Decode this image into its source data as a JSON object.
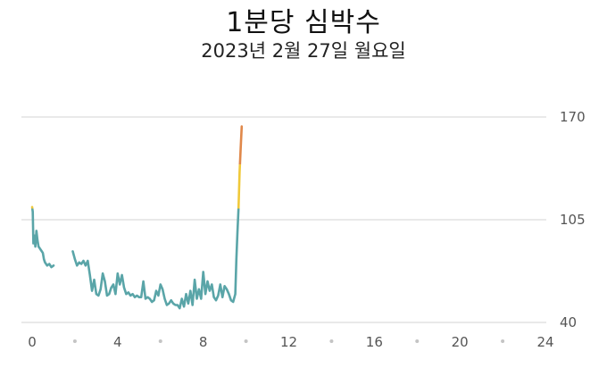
{
  "header": {
    "title": "1분당 심박수",
    "subtitle": "2023년 2월 27일 월요일"
  },
  "colors": {
    "normal": "#5aa5a8",
    "elevated": "#f0c93a",
    "high": "#e0884a",
    "grid": "#dcdcdc",
    "text": "#555555"
  },
  "chart_data": {
    "type": "line",
    "title": "1분당 심박수",
    "subtitle": "2023년 2월 27일 월요일",
    "xlabel": "",
    "ylabel": "",
    "xlim": [
      0,
      24
    ],
    "ylim": [
      40,
      170
    ],
    "x_ticks": [
      0,
      4,
      8,
      12,
      16,
      20,
      24
    ],
    "x_minor_ticks": [
      2,
      6,
      10,
      14,
      18,
      22
    ],
    "y_ticks": [
      40,
      105,
      170
    ],
    "y_axis_position": "right",
    "grid": true,
    "zones": [
      {
        "from": 40,
        "to": 112,
        "color_key": "normal"
      },
      {
        "from": 112,
        "to": 140,
        "color_key": "elevated"
      },
      {
        "from": 140,
        "to": 170,
        "color_key": "high"
      }
    ],
    "segments": [
      {
        "x": [
          0.0,
          0.03,
          0.06,
          0.1,
          0.15,
          0.2,
          0.25,
          0.3,
          0.35,
          0.4,
          0.45,
          0.5,
          0.55,
          0.6,
          0.65,
          0.7,
          0.8,
          0.9,
          1.0
        ],
        "y": [
          113,
          110,
          90,
          95,
          88,
          98,
          92,
          88,
          87,
          86,
          85,
          84,
          80,
          78,
          77,
          76,
          77,
          75,
          76
        ]
      },
      {
        "x": [
          1.9,
          2.0,
          2.1,
          2.2,
          2.3,
          2.4,
          2.5,
          2.6,
          2.7,
          2.8,
          2.9,
          3.0,
          3.1,
          3.2,
          3.3,
          3.4,
          3.5,
          3.6,
          3.7,
          3.8,
          3.9,
          4.0,
          4.1,
          4.2,
          4.3,
          4.4,
          4.5,
          4.6,
          4.7,
          4.8,
          4.9,
          5.0,
          5.1,
          5.2,
          5.3,
          5.4,
          5.5,
          5.6,
          5.7,
          5.8,
          5.9,
          6.0,
          6.1,
          6.2,
          6.3,
          6.4,
          6.5,
          6.6,
          6.7,
          6.8,
          6.9,
          7.0,
          7.1,
          7.2,
          7.3,
          7.4,
          7.5,
          7.6,
          7.7,
          7.8,
          7.9,
          8.0,
          8.1,
          8.2,
          8.3,
          8.4,
          8.5,
          8.6,
          8.7,
          8.8,
          8.9,
          9.0,
          9.1,
          9.2,
          9.3,
          9.4,
          9.5,
          9.55,
          9.6,
          9.65,
          9.7,
          9.75,
          9.8
        ],
        "y": [
          85,
          80,
          76,
          78,
          77,
          79,
          76,
          79,
          70,
          60,
          67,
          58,
          57,
          61,
          71,
          66,
          57,
          58,
          62,
          64,
          58,
          71,
          64,
          70,
          62,
          58,
          59,
          57,
          58,
          56,
          57,
          56,
          56,
          66,
          55,
          56,
          55,
          53,
          54,
          60,
          57,
          64,
          61,
          55,
          51,
          52,
          54,
          52,
          51,
          51,
          49,
          55,
          50,
          58,
          52,
          60,
          51,
          67,
          55,
          61,
          55,
          72,
          58,
          66,
          60,
          64,
          56,
          54,
          57,
          64,
          56,
          63,
          61,
          58,
          54,
          53,
          58,
          80,
          97,
          112,
          135,
          150,
          164
        ]
      }
    ]
  }
}
